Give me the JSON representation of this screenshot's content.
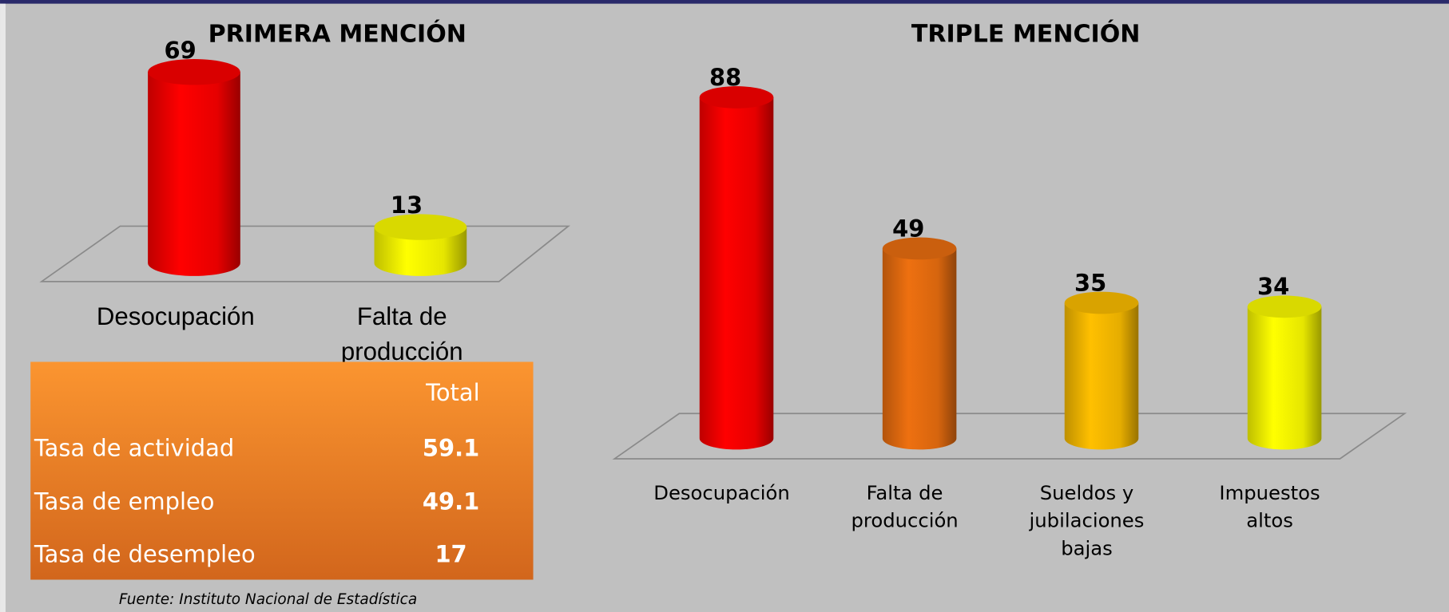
{
  "chart_data": [
    {
      "type": "cylinder",
      "title": "PRIMERA MENCIÓN",
      "categories": [
        "Desocupación",
        "Falta de\nproducción"
      ],
      "values": [
        69,
        13
      ],
      "colors": [
        "#ff0000",
        "#ffff00"
      ]
    },
    {
      "type": "cylinder",
      "title": "TRIPLE MENCIÓN",
      "categories": [
        "Desocupación",
        "Falta de\nproducción",
        "Sueldos y\njubilaciones\nbajas",
        "Impuestos\naltos"
      ],
      "values": [
        88,
        49,
        35,
        34
      ],
      "colors": [
        "#ff0000",
        "#ee7010",
        "#ffc000",
        "#ffff00"
      ]
    }
  ],
  "table": {
    "header": "Total",
    "rows": [
      [
        "Tasa de actividad",
        "59.1"
      ],
      [
        "Tasa de empleo",
        "49.1"
      ],
      [
        "Tasa de desempleo",
        "17"
      ]
    ]
  },
  "source": "Fuente: Instituto Nacional de Estadística"
}
